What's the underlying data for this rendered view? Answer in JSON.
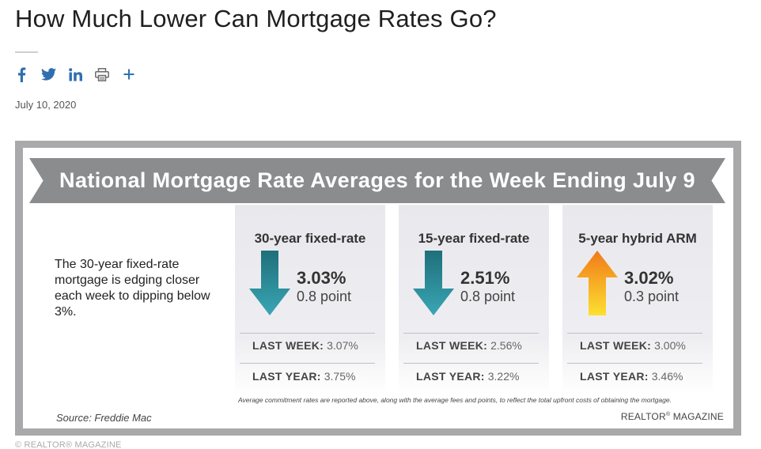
{
  "article": {
    "title": "How Much Lower Can Mortgage Rates Go?",
    "date": "July 10, 2020",
    "copyright": "© REALTOR® MAGAZINE"
  },
  "share": {
    "icons": [
      "facebook-icon",
      "twitter-icon",
      "linkedin-icon",
      "print-icon",
      "plus-icon"
    ],
    "color": "#2f6fb0"
  },
  "infographic": {
    "banner": "National Mortgage Rate Averages for the Week Ending July 9",
    "description": "The 30-year fixed-rate mortgage is edging closer each week to dipping below 3%.",
    "columns": [
      {
        "heading": "30-year fixed-rate",
        "rate": "3.03%",
        "points": "0.8 point",
        "direction": "down",
        "last_week_label": "LAST WEEK:",
        "last_week": "3.07%",
        "last_year_label": "LAST YEAR:",
        "last_year": "3.75%"
      },
      {
        "heading": "15-year fixed-rate",
        "rate": "2.51%",
        "points": "0.8 point",
        "direction": "down",
        "last_week_label": "LAST WEEK:",
        "last_week": "2.56%",
        "last_year_label": "LAST YEAR:",
        "last_year": "3.22%"
      },
      {
        "heading": "5-year hybrid ARM",
        "rate": "3.02%",
        "points": "0.3 point",
        "direction": "up",
        "last_week_label": "LAST WEEK:",
        "last_week": "3.00%",
        "last_year_label": "LAST YEAR:",
        "last_year": "3.46%"
      }
    ],
    "footnote": "Average commitment rates are reported above, along with the average fees and points, to reflect the total upfront costs of obtaining the mortgage.",
    "source": "Source: Freddie Mac",
    "brand_name": "REALTOR",
    "brand_mark": "®",
    "brand_suffix": " MAGAZINE",
    "colors": {
      "down_arrow_top": "#1f6f7a",
      "down_arrow_bottom": "#3aa6b5",
      "up_arrow_top": "#f07a1a",
      "up_arrow_bottom": "#fde030",
      "banner": "#8a8c8e"
    }
  }
}
